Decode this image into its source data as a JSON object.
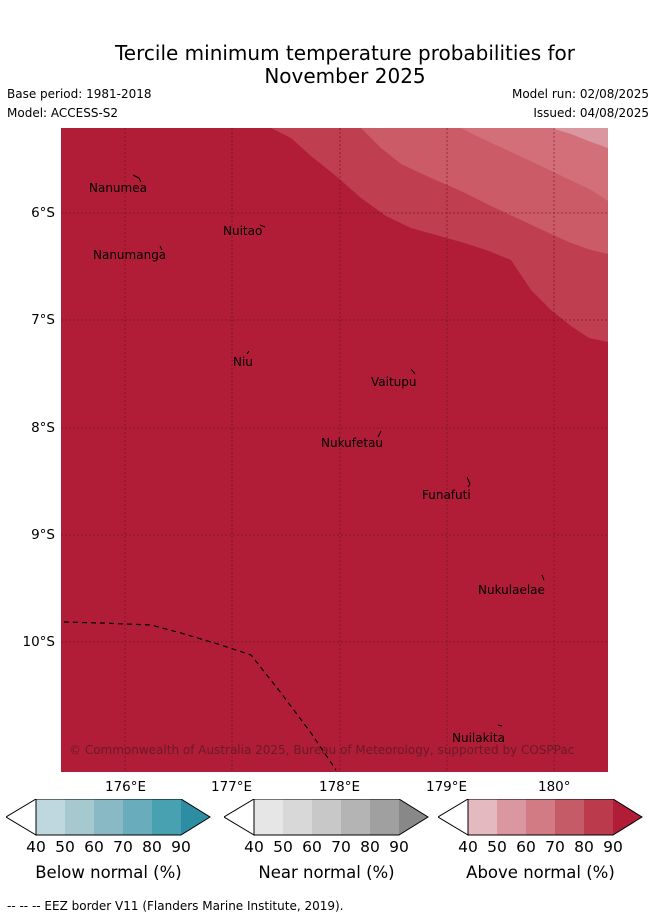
{
  "title_line1": "Tercile minimum temperature probabilities for",
  "title_line2": "November 2025",
  "base_period": "Base period: 1981-2018",
  "model": "Model: ACCESS-S2",
  "model_run": "Model run: 02/08/2025",
  "issued": "Issued: 04/08/2025",
  "map": {
    "lat_ticks": [
      "6°S",
      "7°S",
      "8°S",
      "9°S",
      "10°S"
    ],
    "lon_ticks": [
      "176°E",
      "177°E",
      "178°E",
      "179°E",
      "180°"
    ],
    "places": [
      {
        "name": "Nanumea"
      },
      {
        "name": "Nuitao"
      },
      {
        "name": "Nanumanga"
      },
      {
        "name": "Niu"
      },
      {
        "name": "Vaitupu"
      },
      {
        "name": "Nukufetau"
      },
      {
        "name": "Funafuti"
      },
      {
        "name": "Nukulaelae"
      },
      {
        "name": "Nuilakita"
      }
    ],
    "copyright": "© Commonwealth of Australia 2025, Bureau of Meteorology, supported by COSPPac",
    "colors": {
      "above_90": "#b11d37",
      "above_80": "#bf3e50",
      "above_70": "#cb5b67",
      "above_60": "#d26f78"
    }
  },
  "colorbars": [
    {
      "label": "Below normal (%)",
      "ticks": [
        "40",
        "50",
        "60",
        "70",
        "80",
        "90"
      ],
      "colors": [
        "#bfd7de",
        "#a5c9cf",
        "#89b9c4",
        "#69adbd",
        "#48a1b1",
        "#2d8da2"
      ]
    },
    {
      "label": "Near normal (%)",
      "ticks": [
        "40",
        "50",
        "60",
        "70",
        "80",
        "90"
      ],
      "colors": [
        "#e6e6e6",
        "#d8d8d8",
        "#c8c8c8",
        "#b4b4b4",
        "#a0a0a0",
        "#888888"
      ]
    },
    {
      "label": "Above normal (%)",
      "ticks": [
        "40",
        "50",
        "60",
        "70",
        "80",
        "90"
      ],
      "colors": [
        "#e4b9c0",
        "#da979f",
        "#d27b85",
        "#c65b68",
        "#bb3a4c",
        "#b11d37"
      ]
    }
  ],
  "footer": "--  --  -- EEZ border V11 (Flanders Marine Institute, 2019)."
}
